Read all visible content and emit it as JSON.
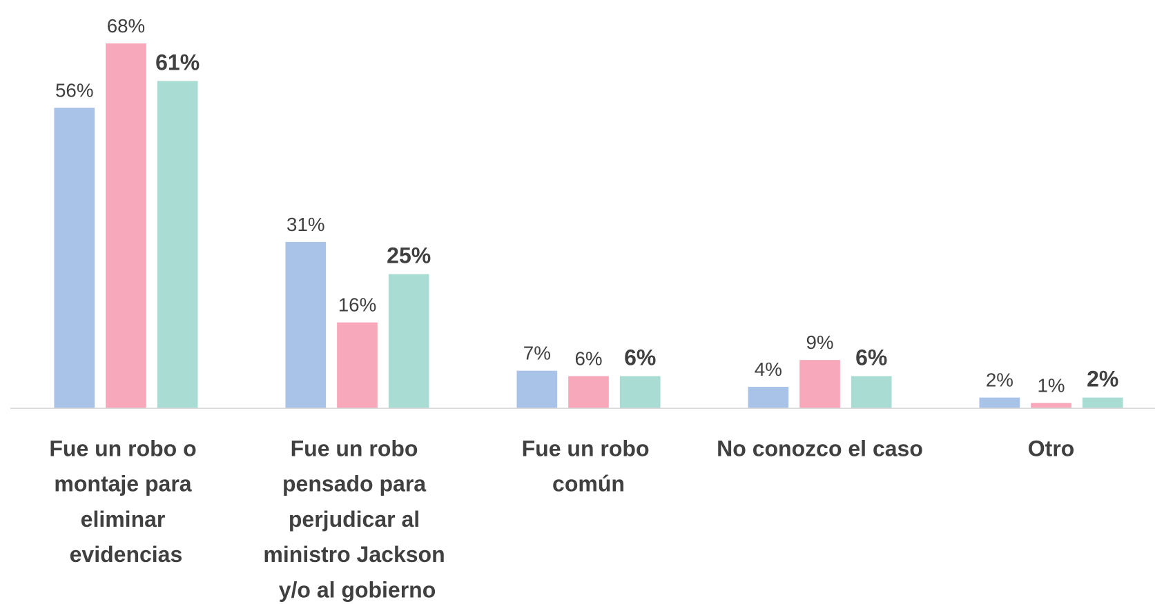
{
  "chart_data": {
    "type": "bar",
    "categories": [
      "Fue un robo o\nmontaje para\neliminar\nevidencias",
      "Fue un robo\npensado para\nperjudicar al\nministro Jackson\ny/o al gobierno",
      "Fue un robo\ncomún",
      "No conozco el caso",
      "Otro"
    ],
    "series": [
      {
        "color": "#a9c2e8",
        "values": [
          56,
          31,
          7,
          4,
          2
        ],
        "value_labels": [
          "56%",
          "31%",
          "7%",
          "4%",
          "2%"
        ]
      },
      {
        "color": "#f7a8ba",
        "values": [
          68,
          16,
          6,
          9,
          1
        ],
        "value_labels": [
          "68%",
          "16%",
          "6%",
          "9%",
          "1%"
        ]
      },
      {
        "color": "#a9dcd3",
        "values": [
          61,
          25,
          6,
          6,
          2
        ],
        "value_labels": [
          "61%",
          "25%",
          "6%",
          "6%",
          "2%"
        ],
        "bold_labels": true
      }
    ]
  }
}
